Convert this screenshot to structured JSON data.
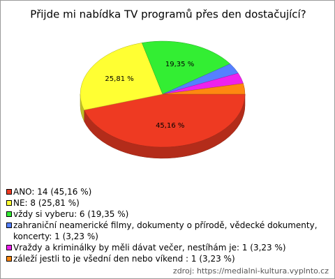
{
  "chart_data": {
    "type": "pie3d",
    "title": "Přijde mi nabídka TV programů přes den dostačující?",
    "labels": [
      "ANO: 14 (45,16 %)",
      "NE: 8 (25,81 %)",
      "vždy si vyberu: 6 (19,35 %)",
      "zahraniční neamerické filmy, dokumenty o přírodě, vědecké dokumenty, koncerty: 1 (3,23 %)",
      "Vraždy a kriminálky by měli dávat večer, nestíhám je: 1 (3,23 %)",
      "záleží jestli to je všední den nebo víkend : 1 (3,23 %)"
    ],
    "values": [
      45.16,
      25.81,
      19.35,
      3.23,
      3.23,
      3.23
    ],
    "value_labels": [
      "45,16 %",
      "25,81 %",
      "19,35 %",
      null,
      null,
      null
    ],
    "colors": [
      "#ee3a22",
      "#ffff33",
      "#33ee33",
      "#5580ff",
      "#ee22ee",
      "#ff8811"
    ],
    "source": "zdroj: https://medialni-kultura.vyplnto.cz"
  }
}
